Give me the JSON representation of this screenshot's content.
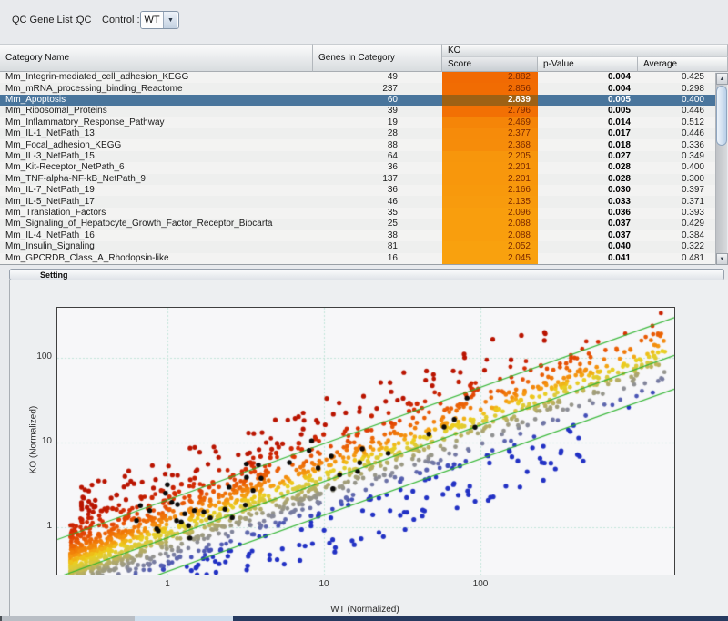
{
  "toolbar": {
    "gene_list_label": "QC Gene List :",
    "gene_list_value": "QC",
    "control_label": "Control :",
    "control_value": "WT"
  },
  "table": {
    "group_header": "KO",
    "col_category": "Category Name",
    "col_genes": "Genes In Category",
    "col_score": "Score",
    "col_pvalue": "p-Value",
    "col_average": "Average",
    "sorted_column": "Score",
    "score_heat": {
      "high_color": "#f16a03",
      "low_color": "#f9a10e",
      "score_max": 2.882,
      "score_min": 2.045,
      "text_color": "#7c2800",
      "selected_bg": "#9e6114"
    },
    "selection": {
      "row_bg": "#49759c",
      "text_color": "#ffffff"
    },
    "rows": [
      {
        "name": "Mm_Integrin-mediated_cell_adhesion_KEGG",
        "genes": "49",
        "score": "2.882",
        "p_value": "0.004",
        "average": "0.425",
        "selected": false
      },
      {
        "name": "Mm_mRNA_processing_binding_Reactome",
        "genes": "237",
        "score": "2.856",
        "p_value": "0.004",
        "average": "0.298",
        "selected": false
      },
      {
        "name": "Mm_Apoptosis",
        "genes": "60",
        "score": "2.839",
        "p_value": "0.005",
        "average": "0.400",
        "selected": true
      },
      {
        "name": "Mm_Ribosomal_Proteins",
        "genes": "39",
        "score": "2.796",
        "p_value": "0.005",
        "average": "0.446",
        "selected": false
      },
      {
        "name": "Mm_Inflammatory_Response_Pathway",
        "genes": "19",
        "score": "2.469",
        "p_value": "0.014",
        "average": "0.512",
        "selected": false
      },
      {
        "name": "Mm_IL-1_NetPath_13",
        "genes": "28",
        "score": "2.377",
        "p_value": "0.017",
        "average": "0.446",
        "selected": false
      },
      {
        "name": "Mm_Focal_adhesion_KEGG",
        "genes": "88",
        "score": "2.368",
        "p_value": "0.018",
        "average": "0.336",
        "selected": false
      },
      {
        "name": "Mm_IL-3_NetPath_15",
        "genes": "64",
        "score": "2.205",
        "p_value": "0.027",
        "average": "0.349",
        "selected": false
      },
      {
        "name": "Mm_Kit-Receptor_NetPath_6",
        "genes": "36",
        "score": "2.201",
        "p_value": "0.028",
        "average": "0.400",
        "selected": false
      },
      {
        "name": "Mm_TNF-alpha-NF-kB_NetPath_9",
        "genes": "137",
        "score": "2.201",
        "p_value": "0.028",
        "average": "0.300",
        "selected": false
      },
      {
        "name": "Mm_IL-7_NetPath_19",
        "genes": "36",
        "score": "2.166",
        "p_value": "0.030",
        "average": "0.397",
        "selected": false
      },
      {
        "name": "Mm_IL-5_NetPath_17",
        "genes": "46",
        "score": "2.135",
        "p_value": "0.033",
        "average": "0.371",
        "selected": false
      },
      {
        "name": "Mm_Translation_Factors",
        "genes": "35",
        "score": "2.096",
        "p_value": "0.036",
        "average": "0.393",
        "selected": false
      },
      {
        "name": "Mm_Signaling_of_Hepatocyte_Growth_Factor_Receptor_Biocarta",
        "genes": "25",
        "score": "2.088",
        "p_value": "0.037",
        "average": "0.429",
        "selected": false
      },
      {
        "name": "Mm_IL-4_NetPath_16",
        "genes": "38",
        "score": "2.088",
        "p_value": "0.037",
        "average": "0.384",
        "selected": false
      },
      {
        "name": "Mm_Insulin_Signaling",
        "genes": "81",
        "score": "2.052",
        "p_value": "0.040",
        "average": "0.322",
        "selected": false
      },
      {
        "name": "Mm_GPCRDB_Class_A_Rhodopsin-like",
        "genes": "16",
        "score": "2.045",
        "p_value": "0.041",
        "average": "0.481",
        "selected": false
      }
    ]
  },
  "setting_panel": {
    "label": "Setting"
  },
  "chart_data": {
    "type": "scatter",
    "xlabel": "WT (Normalized)",
    "ylabel": "KO (Normalized)",
    "scale": "log-log",
    "x_ticks": [
      "1",
      "10",
      "100"
    ],
    "y_ticks": [
      "1",
      "10",
      "100"
    ],
    "x_range": [
      0.2,
      1700
    ],
    "y_range": [
      0.28,
      390
    ],
    "grid": true,
    "grid_color": "#c2e4d8",
    "plot_bg": "#f7f7f9",
    "reference_lines": {
      "color": "#2db42d",
      "exponent": 0.665,
      "coefficients": [
        2.1,
        0.75,
        0.3
      ]
    },
    "point_color_stops": [
      [
        0.52,
        "#b91400"
      ],
      [
        0.32,
        "#dd3404"
      ],
      [
        0.16,
        "#ee6d06"
      ],
      [
        0.05,
        "#f59a10"
      ],
      [
        -0.02,
        "#eccf1e"
      ],
      [
        -0.1,
        "#d8c93e"
      ],
      [
        -0.2,
        "#aaa470"
      ],
      [
        -0.3,
        "#8f9094"
      ],
      [
        -0.4,
        "#636bab"
      ],
      [
        -0.52,
        "#2231c4"
      ]
    ],
    "seed": 42,
    "series": [
      {
        "name": "main-cloud",
        "n": 1700,
        "t_base": -0.62,
        "t_span": 3.8,
        "t_pow": 1.9,
        "lk_mean": -0.04,
        "lk_sd": 0.22,
        "lk_clip": [
          -0.55,
          0.62
        ],
        "r": 2.4
      },
      {
        "name": "up-regulated-outliers",
        "n": 150,
        "t_base": -0.55,
        "t_span": 3.0,
        "t_pow": 1.8,
        "lk_min": 0.28,
        "lk_max": 0.85,
        "r": 2.6
      },
      {
        "name": "down-regulated-outliers",
        "n": 175,
        "t_base": -0.45,
        "t_span": 3.2,
        "t_pow": 1.25,
        "lk_min": -1.05,
        "lk_max": -0.4,
        "r": 2.6
      },
      {
        "name": "selected-category-genes",
        "n": 42,
        "t_base": -0.2,
        "t_span": 2.2,
        "t_pow": 1.3,
        "lk_mean": 0.1,
        "lk_sd": 0.17,
        "lk_clip": [
          -0.35,
          0.55
        ],
        "color": "#0a0a0a",
        "r": 2.7
      }
    ]
  },
  "bottom_scrollbar": {
    "edge_color": "#4a4f55",
    "track_color": "#b9bec5",
    "thumb_color": "#cfdfee",
    "fill_color": "#263a60"
  }
}
